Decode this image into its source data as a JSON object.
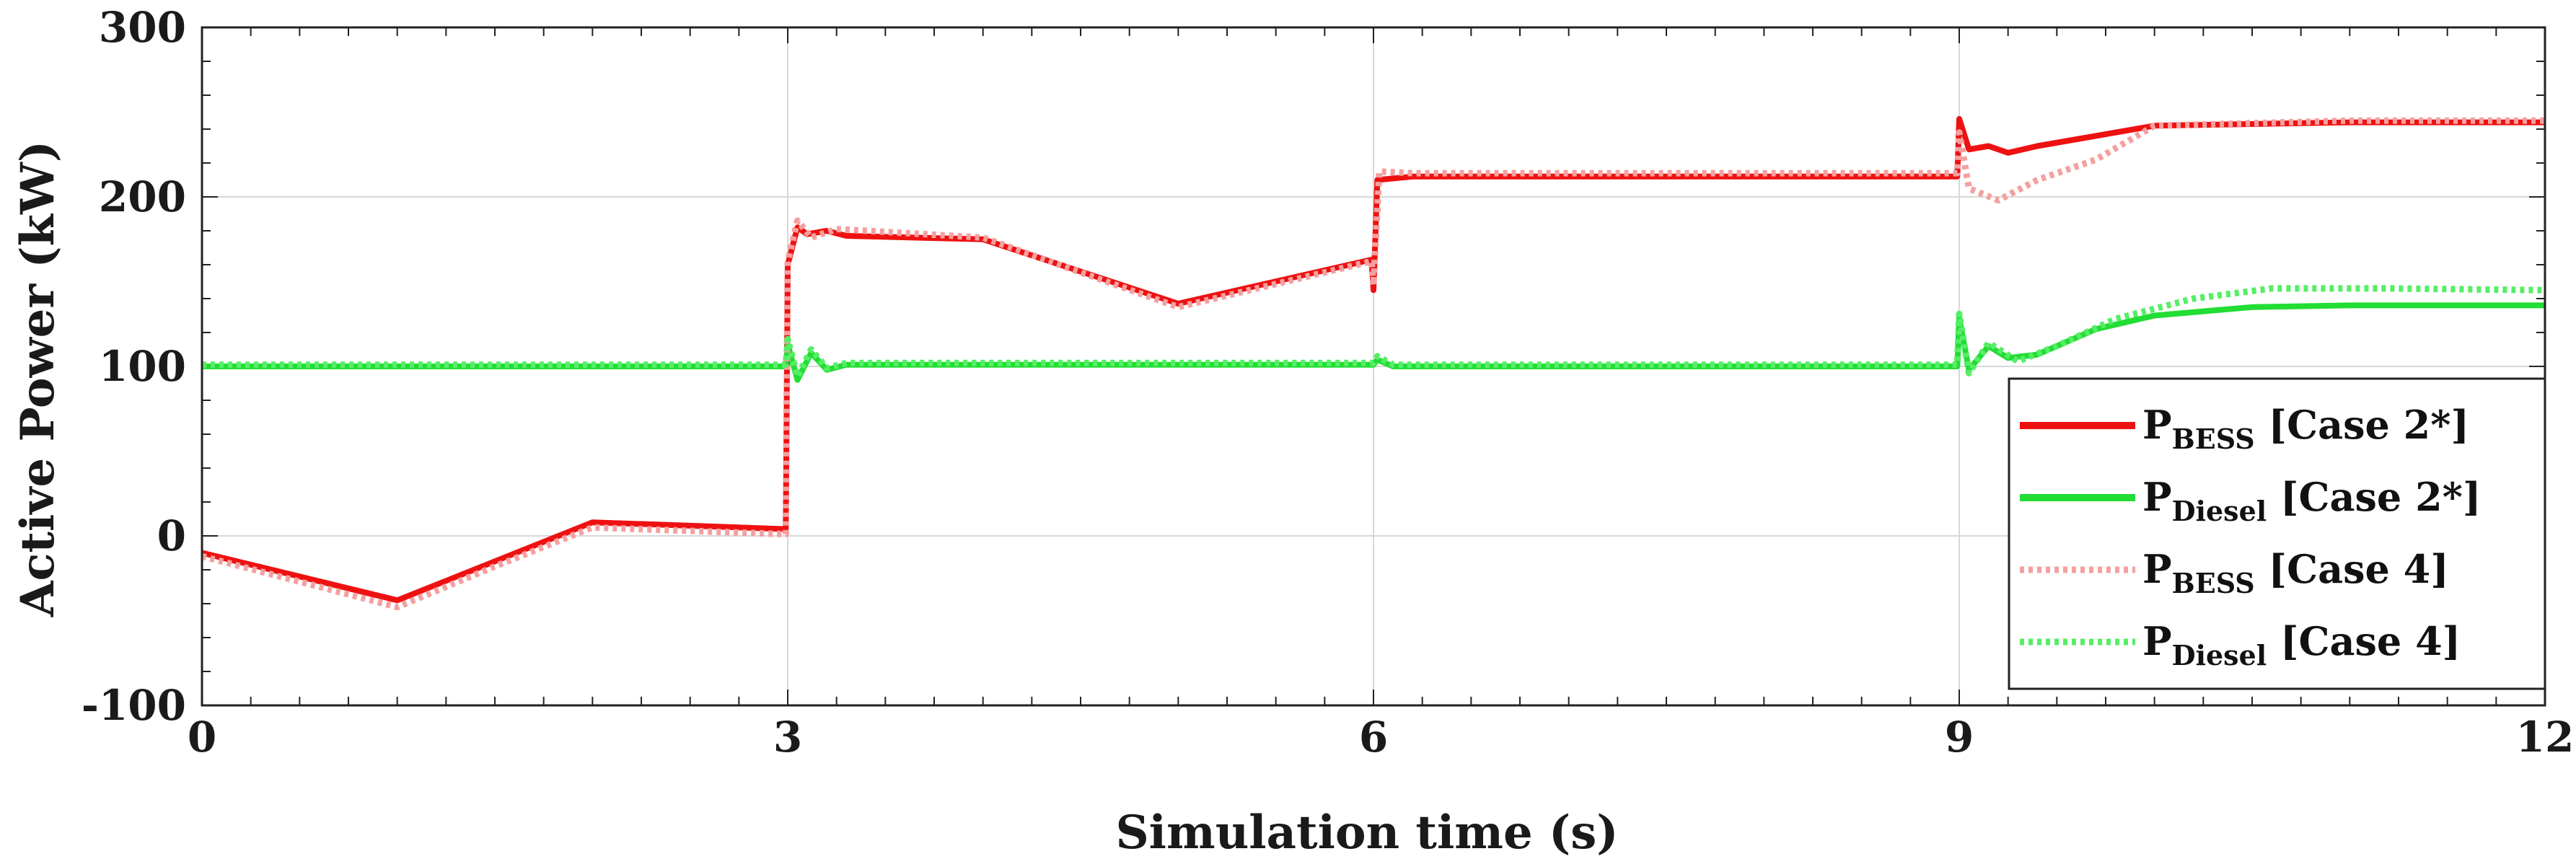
{
  "chart_data": {
    "type": "line",
    "title": "",
    "xlabel": "Simulation time (s)",
    "ylabel": "Active Power (kW)",
    "xlim": [
      0,
      12
    ],
    "ylim": [
      -100,
      300
    ],
    "xticks": [
      "0",
      "3",
      "6",
      "9",
      "12"
    ],
    "yticks": [
      "-100",
      "0",
      "100",
      "200",
      "300"
    ],
    "grid": true,
    "legend_position": "bottom-right",
    "series": [
      {
        "legend_main": "P",
        "legend_sub": "BESS",
        "legend_case": " [Case 2*]",
        "color": "#ee1111",
        "style": "solid",
        "points": [
          [
            0,
            -10
          ],
          [
            1,
            -38
          ],
          [
            1.5,
            -15
          ],
          [
            2,
            8
          ],
          [
            2.5,
            6
          ],
          [
            2.99,
            4
          ],
          [
            3.0,
            160
          ],
          [
            3.05,
            182
          ],
          [
            3.1,
            178
          ],
          [
            3.2,
            180
          ],
          [
            3.3,
            177
          ],
          [
            4,
            175
          ],
          [
            5,
            137
          ],
          [
            5.99,
            163
          ],
          [
            6.0,
            145
          ],
          [
            6.02,
            210
          ],
          [
            6.2,
            212
          ],
          [
            8.99,
            212
          ],
          [
            9.0,
            246
          ],
          [
            9.05,
            228
          ],
          [
            9.15,
            230
          ],
          [
            9.25,
            226
          ],
          [
            9.4,
            230
          ],
          [
            10,
            242
          ],
          [
            11,
            244
          ],
          [
            12,
            244
          ]
        ]
      },
      {
        "legend_main": "P",
        "legend_sub": "Diesel",
        "legend_case": " [Case 2*]",
        "color": "#22dd33",
        "style": "solid",
        "points": [
          [
            0,
            100
          ],
          [
            2.99,
            100
          ],
          [
            3.0,
            113
          ],
          [
            3.05,
            92
          ],
          [
            3.12,
            108
          ],
          [
            3.2,
            98
          ],
          [
            3.3,
            101
          ],
          [
            6,
            101
          ],
          [
            6.02,
            104
          ],
          [
            6.1,
            100
          ],
          [
            8.99,
            100
          ],
          [
            9.0,
            128
          ],
          [
            9.05,
            98
          ],
          [
            9.15,
            112
          ],
          [
            9.25,
            105
          ],
          [
            9.4,
            107
          ],
          [
            9.7,
            122
          ],
          [
            10,
            130
          ],
          [
            10.5,
            135
          ],
          [
            11,
            136
          ],
          [
            12,
            136
          ]
        ]
      },
      {
        "legend_main": "P",
        "legend_sub": "BESS",
        "legend_case": " [Case 4]",
        "color": "#f4a0a0",
        "style": "dotted",
        "points": [
          [
            0,
            -12
          ],
          [
            1,
            -42
          ],
          [
            1.5,
            -18
          ],
          [
            2,
            5
          ],
          [
            2.5,
            3
          ],
          [
            2.99,
            1
          ],
          [
            3.0,
            162
          ],
          [
            3.05,
            186
          ],
          [
            3.12,
            176
          ],
          [
            3.25,
            181
          ],
          [
            4,
            176
          ],
          [
            5,
            135
          ],
          [
            5.99,
            162
          ],
          [
            6.0,
            148
          ],
          [
            6.03,
            215
          ],
          [
            6.2,
            214
          ],
          [
            8.99,
            214
          ],
          [
            9.0,
            238
          ],
          [
            9.05,
            205
          ],
          [
            9.2,
            198
          ],
          [
            9.4,
            210
          ],
          [
            9.7,
            222
          ],
          [
            10,
            242
          ],
          [
            11,
            245
          ],
          [
            12,
            245
          ]
        ]
      },
      {
        "legend_main": "P",
        "legend_sub": "Diesel",
        "legend_case": " [Case 4]",
        "color": "#55ee66",
        "style": "dotted",
        "points": [
          [
            0,
            101
          ],
          [
            2.99,
            101
          ],
          [
            3.0,
            116
          ],
          [
            3.05,
            94
          ],
          [
            3.12,
            110
          ],
          [
            3.2,
            99
          ],
          [
            3.3,
            102
          ],
          [
            6,
            102
          ],
          [
            6.02,
            106
          ],
          [
            6.1,
            101
          ],
          [
            8.99,
            101
          ],
          [
            9.0,
            131
          ],
          [
            9.05,
            96
          ],
          [
            9.15,
            114
          ],
          [
            9.3,
            103
          ],
          [
            9.5,
            112
          ],
          [
            9.8,
            128
          ],
          [
            10.2,
            140
          ],
          [
            10.6,
            146
          ],
          [
            11.2,
            146
          ],
          [
            12,
            145
          ]
        ]
      }
    ]
  }
}
